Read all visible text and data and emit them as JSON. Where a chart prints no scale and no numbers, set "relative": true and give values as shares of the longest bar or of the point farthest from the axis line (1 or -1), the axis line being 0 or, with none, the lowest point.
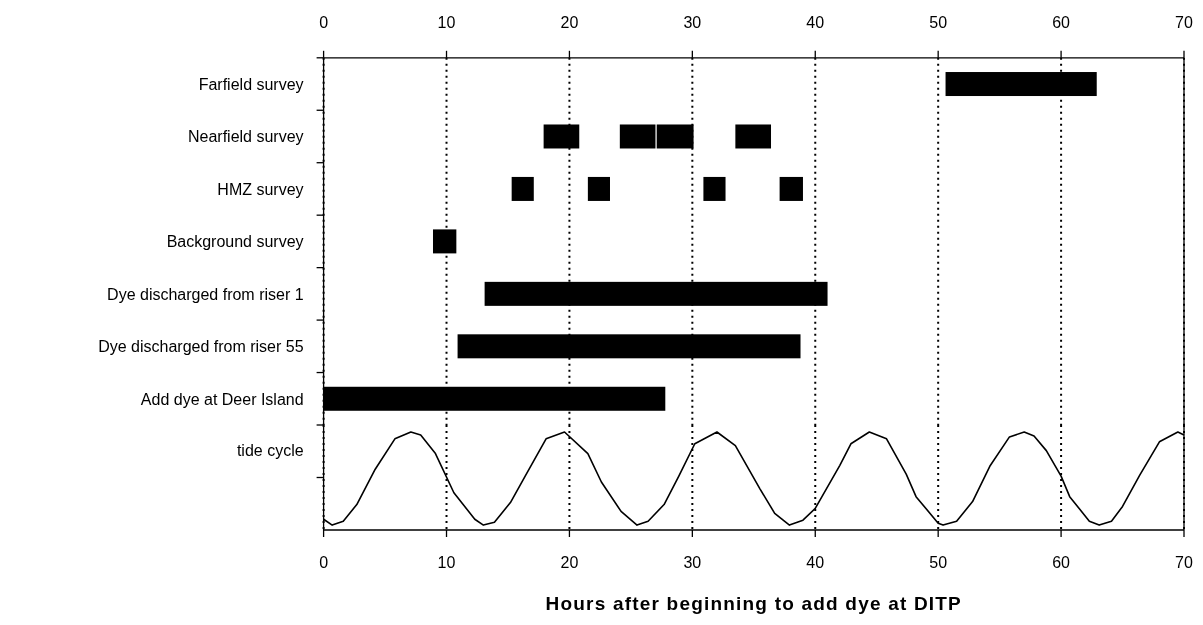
{
  "chart_data": [
    {
      "type": "bar",
      "orientation": "horizontal",
      "categories": [
        "Farfield survey",
        "Nearfield survey",
        "HMZ survey",
        "Background survey",
        "Dye discharged from riser 1",
        "Dye discharged from riser 55",
        "Add dye at Deer Island"
      ],
      "series": [
        {
          "color": "#000000",
          "base": [
            50.6,
            17.9,
            15.3,
            8.9,
            13.1,
            10.9,
            0
          ],
          "values": [
            12.3,
            2.9,
            1.8,
            1.9,
            27.9,
            27.9,
            27.8
          ]
        },
        {
          "color": "#000000",
          "base": [
            null,
            24.1,
            21.5,
            null,
            null,
            null,
            null
          ],
          "values": [
            null,
            2.9,
            1.8,
            null,
            null,
            null,
            null
          ]
        },
        {
          "color": "#000000",
          "base": [
            null,
            27.1,
            30.9,
            null,
            null,
            null,
            null
          ],
          "values": [
            null,
            3.0,
            1.8,
            null,
            null,
            null,
            null
          ]
        },
        {
          "color": "#000000",
          "base": [
            null,
            33.5,
            37.1,
            null,
            null,
            null,
            null
          ],
          "values": [
            null,
            2.9,
            1.9,
            null,
            null,
            null,
            null
          ]
        }
      ],
      "xlim": [
        0,
        70
      ],
      "xticks": [
        0,
        10,
        20,
        30,
        40,
        50,
        60,
        70
      ],
      "grid": "x"
    },
    {
      "type": "line",
      "ylabel": "tide cycle",
      "xlabel": "Hours after beginning to add dye at DITP",
      "relative": true,
      "xlim": [
        0,
        70
      ],
      "xticks": [
        0,
        10,
        20,
        30,
        40,
        50,
        60,
        70
      ],
      "grid": "x",
      "marker": "none",
      "line_style": "solid",
      "series": [
        {
          "color": "#000000",
          "x": [
            0,
            0.7,
            1.6,
            2.7,
            4.2,
            5.8,
            7.1,
            7.9,
            9.1,
            10.6,
            12.3,
            13.0,
            13.9,
            15.2,
            16.4,
            18.1,
            19.6,
            21.5,
            22.6,
            24.2,
            25.5,
            26.4,
            27.7,
            28.9,
            30.2,
            32.0,
            33.5,
            35.5,
            36.7,
            37.9,
            39.0,
            40.0,
            42.0,
            42.9,
            44.4,
            45.8,
            47.4,
            48.2,
            50.0,
            50.4,
            51.5,
            52.8,
            54.2,
            55.8,
            57.0,
            57.8,
            58.8,
            60.0,
            60.7,
            62.3,
            63.1,
            64.1,
            65.0,
            66.4,
            68.0,
            69.5,
            70.0
          ],
          "values": [
            0.11,
            0.05,
            0.09,
            0.26,
            0.62,
            0.93,
            1,
            0.97,
            0.78,
            0.38,
            0.11,
            0.05,
            0.08,
            0.28,
            0.55,
            0.93,
            1,
            0.78,
            0.49,
            0.19,
            0.05,
            0.09,
            0.26,
            0.55,
            0.88,
            1,
            0.86,
            0.42,
            0.17,
            0.05,
            0.1,
            0.22,
            0.66,
            0.88,
            1,
            0.93,
            0.57,
            0.34,
            0.07,
            0.05,
            0.09,
            0.29,
            0.65,
            0.95,
            1,
            0.96,
            0.81,
            0.55,
            0.34,
            0.09,
            0.05,
            0.09,
            0.24,
            0.56,
            0.9,
            1,
            0.97
          ]
        }
      ]
    }
  ]
}
